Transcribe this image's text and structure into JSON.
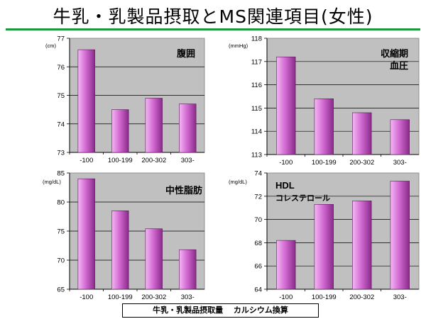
{
  "slide": {
    "title": "牛乳・乳製品摂取とMS関連項目(女性)",
    "footer": "牛乳・乳製品摂取量　 カルシウム換算"
  },
  "colors": {
    "plot_bg": "#c0c0c0",
    "bar_light": "#f4b8f4",
    "bar_mid": "#d36bd3",
    "bar_dark": "#8a2a8a",
    "title_rule": "#1a9a3a"
  },
  "chart_data": [
    {
      "type": "bar",
      "title": "腹囲",
      "unit": "(cm)",
      "categories": [
        "-100",
        "100-199",
        "200-302",
        "303-"
      ],
      "values": [
        76.6,
        74.5,
        74.9,
        74.7
      ],
      "ylim": [
        73,
        77
      ],
      "yticks": [
        "73",
        "74",
        "75",
        "76",
        "77"
      ],
      "grid": true
    },
    {
      "type": "bar",
      "title": "収縮期",
      "title2": "血圧",
      "unit": "(mmHg)",
      "categories": [
        "-100",
        "100-199",
        "200-302",
        "303-"
      ],
      "values": [
        117.2,
        115.4,
        114.8,
        114.5
      ],
      "ylim": [
        113,
        118
      ],
      "yticks": [
        "113",
        "114",
        "115",
        "116",
        "117",
        "118"
      ],
      "grid": true
    },
    {
      "type": "bar",
      "title": "中性脂肪",
      "unit": "(mg/dL)",
      "categories": [
        "-100",
        "100-199",
        "200-302",
        "303-"
      ],
      "values": [
        84.0,
        78.5,
        75.4,
        71.8
      ],
      "ylim": [
        65,
        85
      ],
      "yticks": [
        "65",
        "70",
        "75",
        "80",
        "85"
      ],
      "grid": true
    },
    {
      "type": "bar",
      "title": "HDL",
      "title2": "コレステロール",
      "unit": "(mg/dL)",
      "categories": [
        "-100",
        "100-199",
        "200-302",
        "303-"
      ],
      "values": [
        68.2,
        71.3,
        71.6,
        73.3
      ],
      "ylim": [
        64,
        74
      ],
      "yticks": [
        "64",
        "66",
        "68",
        "70",
        "72",
        "74"
      ],
      "grid": true
    }
  ]
}
